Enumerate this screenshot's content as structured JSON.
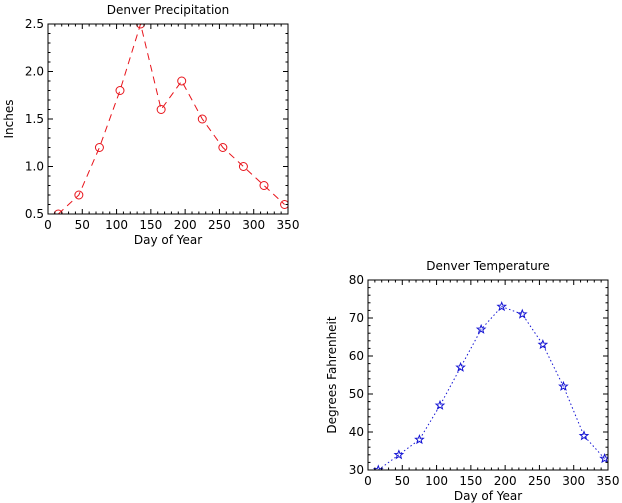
{
  "chart_data": [
    {
      "id": "precip",
      "type": "line",
      "title": "Denver Precipitation",
      "xlabel": "Day of Year",
      "ylabel": "Inches",
      "xlim": [
        0,
        350
      ],
      "ylim": [
        0.5,
        2.5
      ],
      "xticks": [
        0,
        50,
        100,
        150,
        200,
        250,
        300,
        350
      ],
      "yticks": [
        0.5,
        1.0,
        1.5,
        2.0,
        2.5
      ],
      "xtick_labels": [
        "0",
        "50",
        "100",
        "150",
        "200",
        "250",
        "300",
        "350"
      ],
      "ytick_labels": [
        "0.5",
        "1.0",
        "1.5",
        "2.0",
        "2.5"
      ],
      "grid": false,
      "series": [
        {
          "x": [
            15,
            45,
            75,
            105,
            135,
            165,
            195,
            225,
            255,
            285,
            315,
            345
          ],
          "y": [
            0.5,
            0.7,
            1.2,
            1.8,
            2.5,
            1.6,
            1.9,
            1.5,
            1.2,
            1.0,
            0.8,
            0.6
          ],
          "color": "#e8141b",
          "line_style": "dashed",
          "marker": "circle"
        }
      ]
    },
    {
      "id": "temp",
      "type": "line",
      "title": "Denver Temperature",
      "xlabel": "Day of Year",
      "ylabel": "Degrees Fahrenheit",
      "xlim": [
        0,
        350
      ],
      "ylim": [
        30,
        80
      ],
      "xticks": [
        0,
        50,
        100,
        150,
        200,
        250,
        300,
        350
      ],
      "yticks": [
        30,
        40,
        50,
        60,
        70,
        80
      ],
      "xtick_labels": [
        "0",
        "50",
        "100",
        "150",
        "200",
        "250",
        "300",
        "350"
      ],
      "ytick_labels": [
        "30",
        "40",
        "50",
        "60",
        "70",
        "80"
      ],
      "grid": false,
      "series": [
        {
          "x": [
            15,
            45,
            75,
            105,
            135,
            165,
            195,
            225,
            255,
            285,
            315,
            345
          ],
          "y": [
            30,
            34,
            38,
            47,
            57,
            67,
            73,
            71,
            63,
            52,
            39,
            33
          ],
          "color": "#1414d4",
          "line_style": "dotted",
          "marker": "star"
        }
      ]
    }
  ]
}
